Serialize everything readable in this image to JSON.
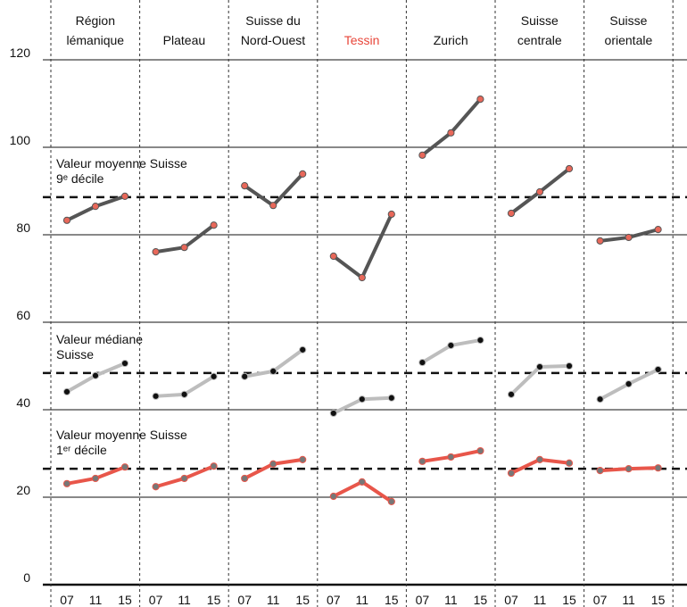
{
  "chart_data": {
    "type": "small-multiples-line",
    "x": [
      "07",
      "11",
      "15"
    ],
    "ylim": [
      0,
      120
    ],
    "yticks": [
      0,
      20,
      40,
      60,
      80,
      100,
      120
    ],
    "grid": true,
    "series_styles": [
      {
        "color": "#555555",
        "marker_color": "#e8685a"
      },
      {
        "color": "#bdbdbd",
        "marker_color": "#111111"
      },
      {
        "color": "#e8564a",
        "marker_color": "#777777"
      }
    ],
    "reference_lines": [
      {
        "value": 88.6,
        "label": [
          "Valeur moyenne Suisse",
          "9ᵉ décile"
        ]
      },
      {
        "value": 48.4,
        "label": [
          "Valeur médiane",
          "Suisse"
        ]
      },
      {
        "value": 26.5,
        "label": [
          "Valeur moyenne Suisse",
          "1ᵉʳ décile"
        ]
      }
    ],
    "panels": [
      {
        "title": [
          "Région",
          "lémanique"
        ],
        "title_color": "#111111",
        "values": [
          [
            83.3,
            86.5,
            88.8
          ],
          [
            44.1,
            47.8,
            50.6
          ],
          [
            23.1,
            24.3,
            26.9
          ]
        ]
      },
      {
        "title": [
          "Plateau"
        ],
        "title_color": "#111111",
        "values": [
          [
            76.1,
            77.1,
            82.2
          ],
          [
            43.1,
            43.5,
            47.6
          ],
          [
            22.4,
            24.3,
            27.1
          ]
        ]
      },
      {
        "title": [
          "Suisse du",
          "Nord-Ouest"
        ],
        "title_color": "#111111",
        "values": [
          [
            91.2,
            86.7,
            93.9
          ],
          [
            47.6,
            48.8,
            53.7
          ],
          [
            24.3,
            27.6,
            28.6
          ]
        ]
      },
      {
        "title": [
          "Tessin"
        ],
        "title_color": "#e8463a",
        "values": [
          [
            75.1,
            70.2,
            84.7
          ],
          [
            39.2,
            42.4,
            42.7
          ],
          [
            20.2,
            23.5,
            19.0
          ]
        ]
      },
      {
        "title": [
          "Zurich"
        ],
        "title_color": "#111111",
        "values": [
          [
            98.2,
            103.3,
            111.0
          ],
          [
            50.8,
            54.7,
            55.9
          ],
          [
            28.2,
            29.2,
            30.6
          ]
        ]
      },
      {
        "title": [
          "Suisse",
          "centrale"
        ],
        "title_color": "#111111",
        "values": [
          [
            84.9,
            89.8,
            95.1
          ],
          [
            43.5,
            49.8,
            50.0
          ],
          [
            25.5,
            28.6,
            27.8
          ]
        ]
      },
      {
        "title": [
          "Suisse",
          "orientale"
        ],
        "title_color": "#111111",
        "values": [
          [
            78.6,
            79.4,
            81.2
          ],
          [
            42.4,
            45.9,
            49.2
          ],
          [
            26.1,
            26.5,
            26.7
          ]
        ]
      }
    ]
  }
}
